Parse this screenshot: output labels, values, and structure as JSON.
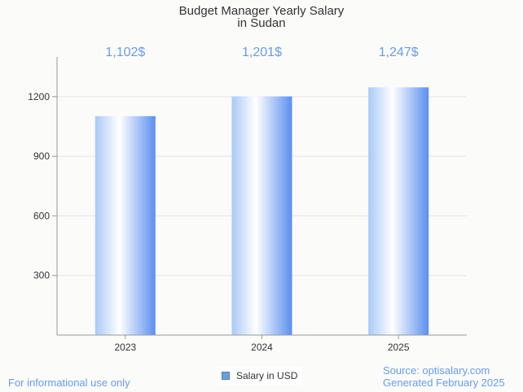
{
  "chart_data": {
    "type": "bar",
    "title": [
      "Budget Manager Yearly Salary",
      "in Sudan"
    ],
    "categories": [
      "2023",
      "2024",
      "2025"
    ],
    "series": [
      {
        "name": "Salary in USD",
        "values": [
          1102,
          1201,
          1247
        ]
      }
    ],
    "data_labels": [
      "1,102$",
      "1,201$",
      "1,247$"
    ],
    "y_ticks": [
      300,
      600,
      900,
      1200
    ],
    "ylim": [
      0,
      1400
    ],
    "grid": true,
    "legend_position": "bottom-center",
    "colors": {
      "bar_light": "#ffffff",
      "bar_dark": "#5b8ff0",
      "label": "#6a9be8"
    }
  },
  "footer": {
    "note": "For informational use only",
    "source": "Source: optisalary.com",
    "generated": "Generated February 2025"
  }
}
